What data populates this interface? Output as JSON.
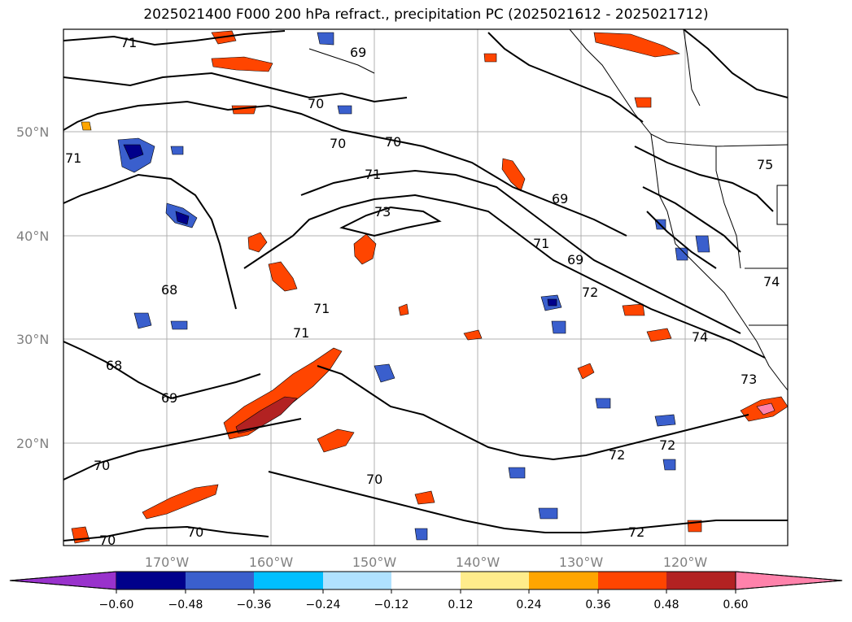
{
  "title": "2025021400 F000 200 hPa refract., precipitation PC (2025021612 - 2025021712)",
  "map": {
    "lat_labels": [
      "50°N",
      "40°N",
      "30°N",
      "20°N"
    ],
    "lon_labels": [
      "170°W",
      "160°W",
      "150°W",
      "140°W",
      "130°W",
      "120°W"
    ],
    "contour_labels": [
      "71",
      "69",
      "70",
      "70",
      "70",
      "71",
      "73",
      "69",
      "69",
      "71",
      "72",
      "68",
      "71",
      "71",
      "68",
      "69",
      "74",
      "73",
      "75",
      "74",
      "72",
      "72",
      "70",
      "70",
      "70",
      "70",
      "72",
      "71"
    ],
    "colors": {
      "land_coast": "#000000",
      "grid": "#b0b0b0",
      "contour": "#000000",
      "label_gray": "#808080"
    }
  },
  "colorbar": {
    "ticks": [
      "−0.60",
      "−0.48",
      "−0.36",
      "−0.24",
      "−0.12",
      "0.12",
      "0.24",
      "0.36",
      "0.48",
      "0.60"
    ],
    "colors": [
      "#9932cc",
      "#00008b",
      "#3a5fcd",
      "#00bfff",
      "#b0e2ff",
      "#ffffff",
      "#ffec8b",
      "#ffa500",
      "#ff4500",
      "#b22222",
      "#ff82ab"
    ]
  }
}
